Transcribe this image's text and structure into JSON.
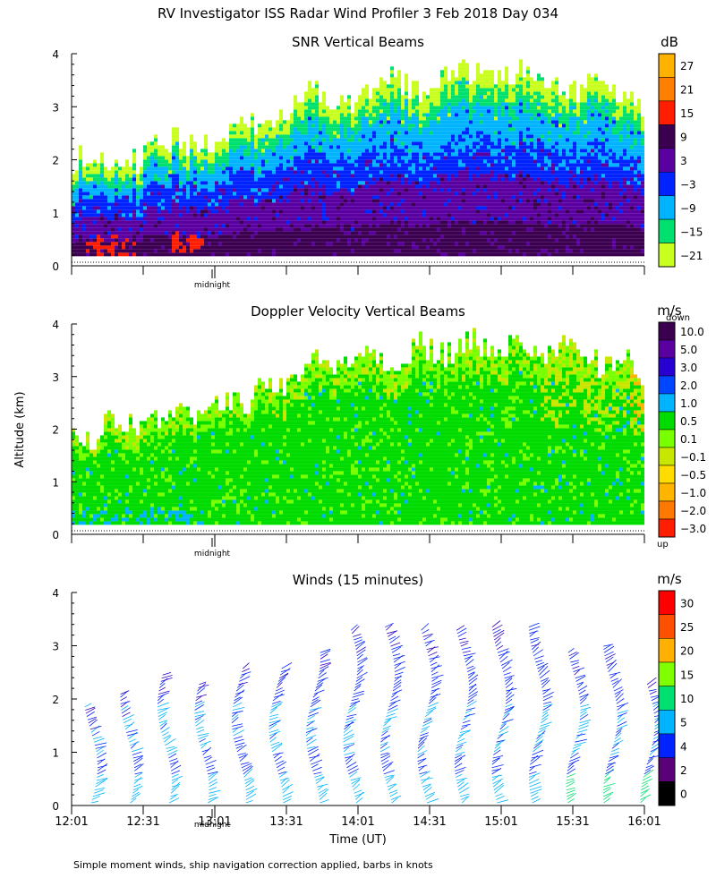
{
  "title": "RV Investigator ISS Radar Wind Profiler   3 Feb 2018 Day 034",
  "y_axis_label": "Altitude (km)",
  "x_axis_label": "Time (UT)",
  "midnight_label": "midnight",
  "footnote": "Simple moment winds, ship navigation correction applied, barbs in knots",
  "chart_data": [
    {
      "type": "heatmap",
      "title": "SNR Vertical Beams",
      "ylabel": "Altitude (km)",
      "ylim": [
        0,
        4
      ],
      "yticks": [
        "0",
        "1",
        "2",
        "3",
        "4"
      ],
      "colorbar": {
        "unit": "dB",
        "labels": [
          "27",
          "21",
          "15",
          "9",
          "3",
          "−3",
          "−9",
          "−15",
          "−21"
        ],
        "colors": [
          "#ffb300",
          "#ff7f00",
          "#ff1e00",
          "#3c0050",
          "#5a00a0",
          "#0023ff",
          "#00b4ff",
          "#00e06e",
          "#c8ff1e"
        ]
      },
      "cloud_top_km": [
        1.9,
        2.0,
        2.2,
        2.4,
        2.7,
        3.1,
        3.3,
        3.4,
        3.5,
        3.6,
        3.5,
        3.3,
        3.0
      ],
      "midnight": "midnight"
    },
    {
      "type": "heatmap",
      "title": "Doppler Velocity Vertical Beams",
      "ylabel": "Altitude (km)",
      "ylim": [
        0,
        4
      ],
      "yticks": [
        "0",
        "1",
        "2",
        "3",
        "4"
      ],
      "colorbar": {
        "unit": "m/s",
        "top_label": "down",
        "bottom_label": "up",
        "labels": [
          "10.0",
          "5.0",
          "3.0",
          "2.0",
          "1.0",
          "0.5",
          "0.1",
          "−0.1",
          "−0.5",
          "−1.0",
          "−2.0",
          "−3.0"
        ],
        "colors": [
          "#3c0050",
          "#5a00a0",
          "#2800d2",
          "#0046ff",
          "#00b4ff",
          "#00dc00",
          "#78ff00",
          "#c8e600",
          "#ffdc00",
          "#ffb400",
          "#ff7800",
          "#ff1e00"
        ]
      },
      "midnight": "midnight"
    },
    {
      "type": "scatter",
      "title": "Winds (15 minutes)",
      "ylim": [
        0,
        4
      ],
      "yticks": [
        "0",
        "1",
        "2",
        "3",
        "4"
      ],
      "xlabel": "Time (UT)",
      "xticks": [
        "12:01",
        "12:31",
        "13:01",
        "13:31",
        "14:01",
        "14:31",
        "15:01",
        "15:31",
        "16:01"
      ],
      "colorbar": {
        "unit": "m/s",
        "labels": [
          "30",
          "25",
          "20",
          "15",
          "10",
          "5",
          "4",
          "2",
          "0"
        ],
        "colors": [
          "#ff0000",
          "#ff5000",
          "#ffb000",
          "#80ff00",
          "#00e070",
          "#00b4ff",
          "#0023ff",
          "#5a0078",
          "#000000"
        ]
      },
      "profile_times": [
        "12:16",
        "12:31",
        "12:46",
        "13:01",
        "13:16",
        "13:31",
        "13:46",
        "14:01",
        "14:16",
        "14:31",
        "14:46",
        "15:01",
        "15:16",
        "15:31",
        "15:46",
        "16:01"
      ],
      "profile_top_km": [
        1.9,
        2.1,
        2.5,
        2.3,
        2.6,
        2.6,
        2.9,
        3.3,
        3.4,
        3.3,
        3.3,
        3.4,
        3.4,
        2.9,
        3.0,
        2.3
      ],
      "midnight": "midnight"
    }
  ]
}
